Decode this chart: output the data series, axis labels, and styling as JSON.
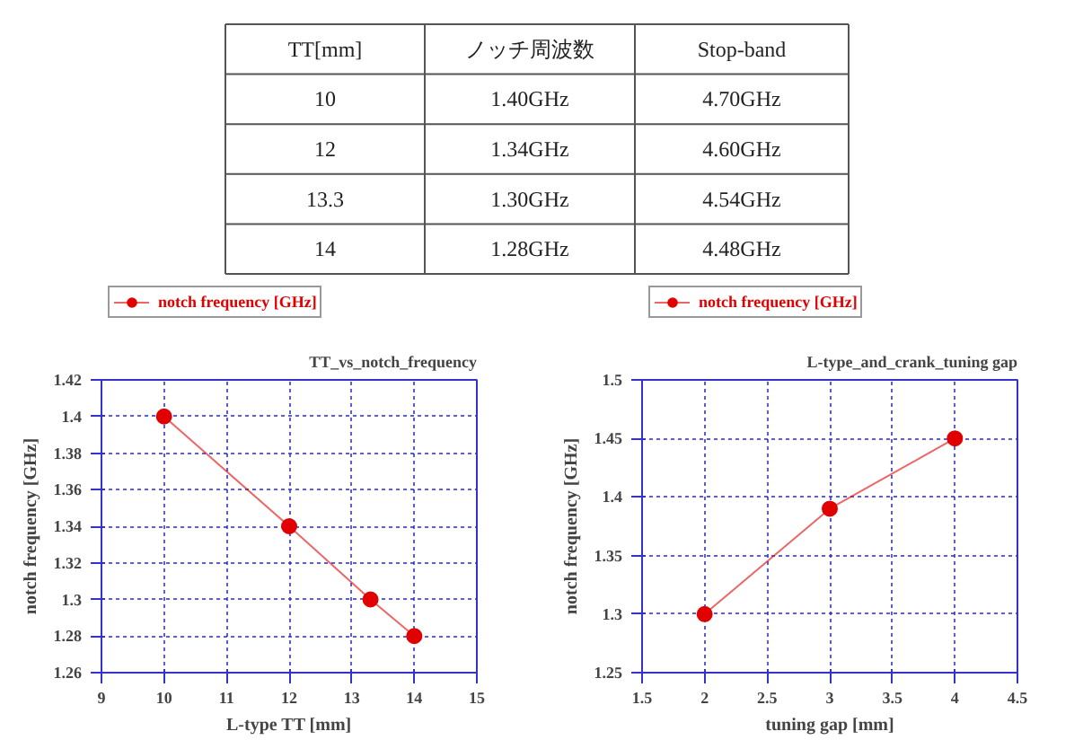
{
  "chart_data": [
    {
      "type": "other",
      "categories": [
        "TT[mm]",
        "ノッチ周波数",
        "Stop-band"
      ],
      "annotations": [
        "10",
        "1.40GHz",
        "4.70GHz",
        "12",
        "1.34GHz",
        "4.60GHz",
        "13.3",
        "1.30GHz",
        "4.54GHz",
        "14",
        "1.28GHz",
        "4.48GHz"
      ]
    },
    {
      "type": "line",
      "title": "TT_vs_notch_frequency",
      "xlabel": "L-type TT [mm]",
      "ylabel": "notch frequency [GHz]",
      "x": [
        10,
        12,
        13.3,
        14
      ],
      "series": [
        {
          "name": "notch frequency [GHz]",
          "color": "#e00000",
          "values": [
            1.4,
            1.34,
            1.3,
            1.28
          ]
        }
      ],
      "xlim": [
        9,
        15
      ],
      "xticks": [
        9,
        10,
        11,
        12,
        13,
        14,
        15
      ],
      "ylim": [
        1.26,
        1.42
      ],
      "yticks": [
        1.26,
        1.28,
        1.3,
        1.32,
        1.34,
        1.36,
        1.38,
        1.4,
        1.42
      ],
      "grid": true,
      "legend": "top left",
      "marker": "circle",
      "line_style": "solid"
    },
    {
      "type": "line",
      "title": "L-type_and_crank_tuning gap",
      "xlabel": "tuning gap [mm]",
      "ylabel": "notch frequency [GHz]",
      "x": [
        2,
        3,
        4
      ],
      "series": [
        {
          "name": "notch frequency [GHz]",
          "color": "#e00000",
          "values": [
            1.3,
            1.39,
            1.45
          ]
        }
      ],
      "xlim": [
        1.5,
        4.5
      ],
      "xticks": [
        1.5,
        2,
        2.5,
        3,
        3.5,
        4,
        4.5
      ],
      "ylim": [
        1.25,
        1.5
      ],
      "yticks": [
        1.25,
        1.3,
        1.35,
        1.4,
        1.45,
        1.5
      ],
      "grid": true,
      "legend": "top left",
      "marker": "circle",
      "line_style": "solid"
    }
  ]
}
